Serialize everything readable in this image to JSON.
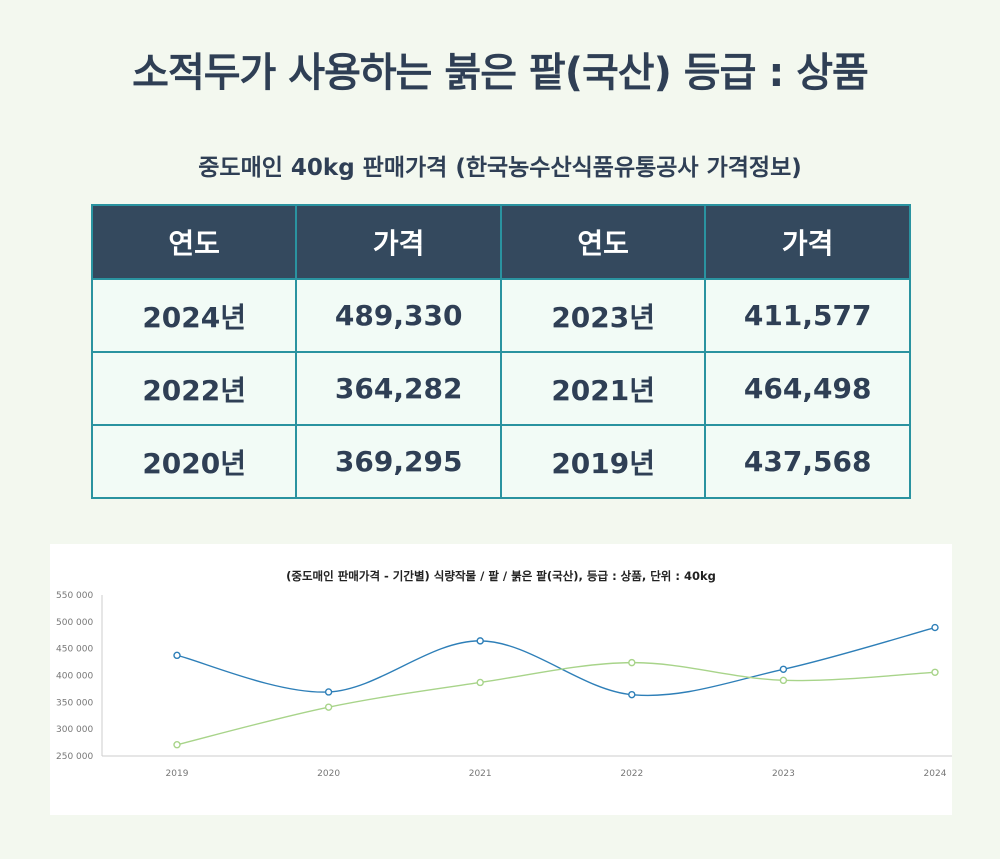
{
  "title": "소적두가 사용하는 붉은 팥(국산)  등급 : 상품",
  "subtitle": "중도매인 40kg 판매가격  (한국농수산식품유통공사 가격정보)",
  "table": {
    "headers": [
      "연도",
      "가격",
      "연도",
      "가격"
    ],
    "rows": [
      [
        "2024년",
        "489,330",
        "2023년",
        "411,577"
      ],
      [
        "2022년",
        "364,282",
        "2021년",
        "464,498"
      ],
      [
        "2020년",
        "369,295",
        "2019년",
        "437,568"
      ]
    ]
  },
  "colors": {
    "header_bg": "#34495e",
    "cell_bg": "#f2fbf6",
    "border": "#2a93a0",
    "series_blue": "#2e7fb8",
    "series_green": "#a8d48a"
  },
  "chart_data": {
    "type": "line",
    "title": "(중도매인 판매가격 - 기간별) 식량작물 / 팥 / 붉은 팥(국산), 등급 : 상품, 단위 : 40kg",
    "x": [
      "2019",
      "2020",
      "2021",
      "2022",
      "2023",
      "2024"
    ],
    "ylim": [
      250000,
      550000
    ],
    "yticks": [
      250000,
      300000,
      350000,
      400000,
      450000,
      500000,
      550000
    ],
    "ytick_labels": [
      "250 000",
      "300 000",
      "350 000",
      "400 000",
      "450 000",
      "500 000",
      "550 000"
    ],
    "grid": false,
    "legend": "none",
    "series": [
      {
        "color": "#2e7fb8",
        "values": [
          437568,
          369295,
          464498,
          364282,
          411577,
          489330
        ]
      },
      {
        "color": "#a8d48a",
        "values": [
          271000,
          341000,
          387000,
          424000,
          391000,
          406000
        ]
      }
    ]
  }
}
